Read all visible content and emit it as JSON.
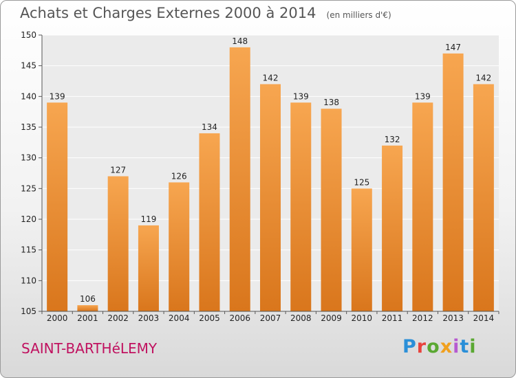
{
  "chart_data": {
    "type": "bar",
    "title": "Achats et Charges Externes 2000 à 2014",
    "unit": "(en milliers d'€)",
    "categories": [
      "2000",
      "2001",
      "2002",
      "2003",
      "2004",
      "2005",
      "2006",
      "2007",
      "2008",
      "2009",
      "2010",
      "2011",
      "2012",
      "2013",
      "2014"
    ],
    "values": [
      139,
      106,
      127,
      119,
      126,
      134,
      148,
      142,
      139,
      138,
      125,
      132,
      139,
      147,
      142
    ],
    "ylim": [
      105,
      150
    ],
    "yticks": [
      105,
      110,
      115,
      120,
      125,
      130,
      135,
      140,
      145,
      150
    ],
    "grid": true,
    "bar_color": "#f39c3c"
  },
  "footer": {
    "city": "SAINT-BARTHéLEMY",
    "logo": "Proxiti",
    "logo_colors": [
      "#2a8fd8",
      "#e8433d",
      "#5aa832",
      "#f1a01e",
      "#b65ad0",
      "#2a8fd8",
      "#5aa832"
    ]
  }
}
